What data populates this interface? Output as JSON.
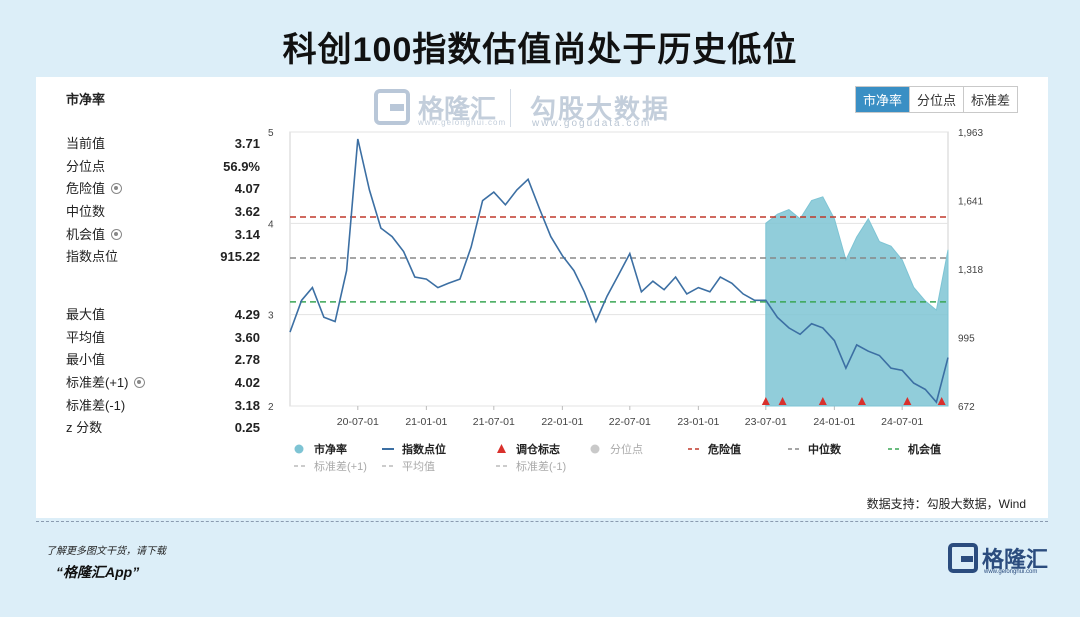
{
  "title": "科创100指数估值尚处于历史低位",
  "panel_title": "市净率",
  "tabs": [
    {
      "label": "市净率",
      "active": true
    },
    {
      "label": "分位点",
      "active": false
    },
    {
      "label": "标准差",
      "active": false
    }
  ],
  "watermark": {
    "brand": "格隆汇",
    "brand_sub": "www.gelonghui.com",
    "partner": "勾股大数据",
    "partner_sub": "www.gogudata.com"
  },
  "stats": [
    {
      "label": "当前值",
      "value": "3.71",
      "gear": false
    },
    {
      "label": "分位点",
      "value": "56.9%",
      "gear": false
    },
    {
      "label": "危险值",
      "value": "4.07",
      "gear": true
    },
    {
      "label": "中位数",
      "value": "3.62",
      "gear": false
    },
    {
      "label": "机会值",
      "value": "3.14",
      "gear": true
    },
    {
      "label": "指数点位",
      "value": "915.22",
      "gear": false
    }
  ],
  "stats2": [
    {
      "label": "最大值",
      "value": "4.29",
      "gear": false
    },
    {
      "label": "平均值",
      "value": "3.60",
      "gear": false
    },
    {
      "label": "最小值",
      "value": "2.78",
      "gear": false
    },
    {
      "label": "标准差(+1)",
      "value": "4.02",
      "gear": true
    },
    {
      "label": "标准差(-1)",
      "value": "3.18",
      "gear": false
    },
    {
      "label": "z 分数",
      "value": "0.25",
      "gear": false
    }
  ],
  "source": "数据支持：勾股大数据，Wind",
  "footer": {
    "line1": "了解更多图文干货，请下载",
    "line2": "“格隆汇App”"
  },
  "brand": {
    "name": "格隆汇",
    "sub": "www.gelonghui.com"
  },
  "colors": {
    "pb_fill": "#7ec4d4",
    "index_line": "#3c6fa3",
    "danger": "#c0392b",
    "median": "#888888",
    "opportunity": "#3aa655",
    "marker": "#d9302c",
    "tab_active": "#3a8fc4"
  },
  "chart_data": {
    "type": "line",
    "x_ticks": [
      "20-07-01",
      "21-01-01",
      "21-07-01",
      "22-01-01",
      "22-07-01",
      "23-01-01",
      "23-07-01",
      "24-01-01",
      "24-07-01"
    ],
    "x_start": "2020-01-01",
    "x_end": "2024-11-01",
    "y_left": {
      "ticks": [
        "5",
        "4",
        "3",
        "2"
      ],
      "range": [
        2,
        5
      ]
    },
    "y_right": {
      "ticks": [
        "1,963",
        "1,641",
        "1,318",
        "995",
        "672"
      ],
      "range": [
        672,
        1963
      ]
    },
    "reference_lines": [
      {
        "name": "危险值",
        "value": 4.07,
        "style": "dashed",
        "color": "#c0392b"
      },
      {
        "name": "中位数",
        "value": 3.62,
        "style": "dashed",
        "color": "#888888"
      },
      {
        "name": "机会值",
        "value": 3.14,
        "style": "dashed",
        "color": "#3aa655"
      }
    ],
    "series": [
      {
        "name": "指数点位",
        "axis": "right",
        "x": [
          "2020-01-01",
          "2020-02-01",
          "2020-03-01",
          "2020-04-01",
          "2020-05-01",
          "2020-06-01",
          "2020-07-01",
          "2020-08-01",
          "2020-09-01",
          "2020-10-01",
          "2020-11-01",
          "2020-12-01",
          "2021-01-01",
          "2021-02-01",
          "2021-03-01",
          "2021-04-01",
          "2021-05-01",
          "2021-06-01",
          "2021-07-01",
          "2021-08-01",
          "2021-09-01",
          "2021-10-01",
          "2021-11-01",
          "2021-12-01",
          "2022-01-01",
          "2022-02-01",
          "2022-03-01",
          "2022-04-01",
          "2022-05-01",
          "2022-06-01",
          "2022-07-01",
          "2022-08-01",
          "2022-09-01",
          "2022-10-01",
          "2022-11-01",
          "2022-12-01",
          "2023-01-01",
          "2023-02-01",
          "2023-03-01",
          "2023-04-01",
          "2023-05-01",
          "2023-06-01",
          "2023-07-01",
          "2023-08-01",
          "2023-09-01",
          "2023-10-01",
          "2023-11-01",
          "2023-12-01",
          "2024-01-01",
          "2024-02-01",
          "2024-03-01",
          "2024-04-01",
          "2024-05-01",
          "2024-06-01",
          "2024-07-01",
          "2024-08-01",
          "2024-09-01",
          "2024-10-01",
          "2024-11-01"
        ],
        "values": [
          1020,
          1170,
          1230,
          1090,
          1070,
          1310,
          1930,
          1690,
          1510,
          1470,
          1400,
          1280,
          1270,
          1230,
          1250,
          1270,
          1420,
          1640,
          1680,
          1620,
          1690,
          1740,
          1600,
          1470,
          1380,
          1310,
          1210,
          1070,
          1190,
          1290,
          1390,
          1210,
          1260,
          1220,
          1280,
          1200,
          1230,
          1210,
          1280,
          1250,
          1200,
          1170,
          1170,
          1090,
          1040,
          1010,
          1060,
          1040,
          980,
          850,
          960,
          930,
          910,
          850,
          840,
          780,
          750,
          690,
          900
        ]
      },
      {
        "name": "市净率",
        "axis": "left",
        "x": [
          "2023-07-01",
          "2023-08-01",
          "2023-09-01",
          "2023-10-01",
          "2023-11-01",
          "2023-12-01",
          "2024-01-01",
          "2024-02-01",
          "2024-03-01",
          "2024-04-01",
          "2024-05-01",
          "2024-06-01",
          "2024-07-01",
          "2024-08-01",
          "2024-09-01",
          "2024-10-01",
          "2024-11-01"
        ],
        "values": [
          4.0,
          4.1,
          4.15,
          4.05,
          4.25,
          4.29,
          4.05,
          3.6,
          3.85,
          4.05,
          3.8,
          3.75,
          3.6,
          3.3,
          3.15,
          3.05,
          3.71
        ]
      }
    ],
    "markers": {
      "name": "调仓标志",
      "x": [
        "2023-07-01",
        "2023-08-15",
        "2023-12-01",
        "2024-03-15",
        "2024-07-15",
        "2024-10-15"
      ]
    },
    "legend": [
      "市净率",
      "指数点位",
      "调仓标志",
      "分位点",
      "危险值",
      "中位数",
      "机会值",
      "标准差(+1)",
      "平均值",
      "标准差(-1)"
    ]
  }
}
